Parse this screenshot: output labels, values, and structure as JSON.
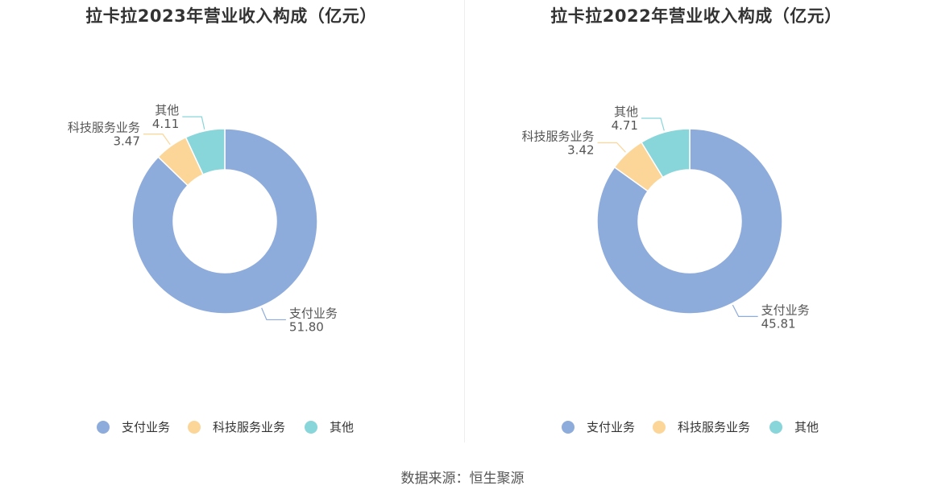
{
  "source_text": "数据来源：恒生聚源",
  "chart_data": [
    {
      "type": "pie",
      "title": "拉卡拉2023年营业收入构成（亿元）",
      "categories": [
        "支付业务",
        "科技服务业务",
        "其他"
      ],
      "values": [
        51.8,
        3.47,
        4.11
      ],
      "value_labels": [
        "51.80",
        "3.47",
        "4.11"
      ],
      "colors": [
        "#8eacdb",
        "#fcd699",
        "#88d5da"
      ],
      "legend": "bottom",
      "donut": true
    },
    {
      "type": "pie",
      "title": "拉卡拉2022年营业收入构成（亿元）",
      "categories": [
        "支付业务",
        "科技服务业务",
        "其他"
      ],
      "values": [
        45.81,
        3.42,
        4.71
      ],
      "value_labels": [
        "45.81",
        "3.42",
        "4.71"
      ],
      "colors": [
        "#8eacdb",
        "#fcd699",
        "#88d5da"
      ],
      "legend": "bottom",
      "donut": true
    }
  ]
}
